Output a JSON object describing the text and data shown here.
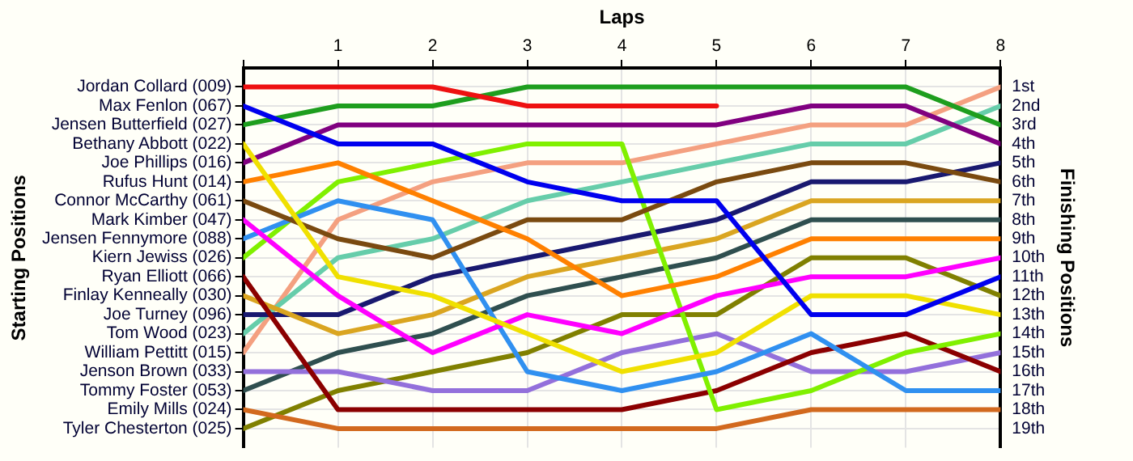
{
  "chart_data": {
    "type": "line",
    "xlabel": "Laps",
    "annotations": [
      "Starting Positions"
    ],
    "y2label": "Finishing Positions",
    "x": [
      0,
      1,
      2,
      3,
      4,
      5,
      6,
      7,
      8
    ],
    "xlim": [
      0,
      8
    ],
    "xticks": [
      {
        "value": 0,
        "label": null
      },
      1,
      2,
      3,
      4,
      5,
      6,
      7,
      8
    ],
    "y2lim": [
      20,
      0
    ],
    "y2ticks": [
      {
        "value": 1,
        "label": "1st"
      },
      {
        "value": 2,
        "label": "2nd"
      },
      {
        "value": 3,
        "label": "3rd"
      },
      {
        "value": 4,
        "label": "4th"
      },
      {
        "value": 5,
        "label": "5th"
      },
      {
        "value": 6,
        "label": "6th"
      },
      {
        "value": 7,
        "label": "7th"
      },
      {
        "value": 8,
        "label": "8th"
      },
      {
        "value": 9,
        "label": "9th"
      },
      {
        "value": 10,
        "label": "10th"
      },
      {
        "value": 11,
        "label": "11th"
      },
      {
        "value": 12,
        "label": "12th"
      },
      {
        "value": 13,
        "label": "13th"
      },
      {
        "value": 14,
        "label": "14th"
      },
      {
        "value": 15,
        "label": "15th"
      },
      {
        "value": 16,
        "label": "16th"
      },
      {
        "value": 17,
        "label": "17th"
      },
      {
        "value": 18,
        "label": "18th"
      },
      {
        "value": 19,
        "label": "19th"
      }
    ],
    "grid": true,
    "legend": false,
    "marker": "none",
    "line_style": "solid",
    "series": [
      {
        "name": "Jordan Collard (009)",
        "axis": "y2",
        "color": "#ee1111",
        "values": [
          1,
          1,
          1,
          2,
          2,
          2,
          null,
          null,
          null
        ]
      },
      {
        "name": "Max Fenlon (067)",
        "axis": "y2",
        "color": "#0000ee",
        "values": [
          2,
          4,
          4,
          6,
          7,
          7,
          13,
          13,
          11
        ]
      },
      {
        "name": "Jensen Butterfield (027)",
        "axis": "y2",
        "color": "#1e9e1e",
        "values": [
          3,
          2,
          2,
          1,
          1,
          1,
          1,
          1,
          3
        ]
      },
      {
        "name": "Bethany Abbott (022)",
        "axis": "y2",
        "color": "#f0e000",
        "values": [
          4,
          11,
          12,
          14,
          16,
          15,
          12,
          12,
          13
        ]
      },
      {
        "name": "Joe Phillips (016)",
        "axis": "y2",
        "color": "#800080",
        "values": [
          5,
          3,
          3,
          3,
          3,
          3,
          2,
          2,
          4
        ]
      },
      {
        "name": "Rufus Hunt (014)",
        "axis": "y2",
        "color": "#ff8000",
        "values": [
          6,
          5,
          7,
          9,
          12,
          11,
          9,
          9,
          9
        ]
      },
      {
        "name": "Connor McCarthy (061)",
        "axis": "y2",
        "color": "#7a4a10",
        "values": [
          7,
          9,
          10,
          8,
          8,
          6,
          5,
          5,
          6
        ]
      },
      {
        "name": "Mark Kimber (047)",
        "axis": "y2",
        "color": "#ff00ff",
        "values": [
          8,
          12,
          15,
          13,
          14,
          12,
          11,
          11,
          10
        ]
      },
      {
        "name": "Jensen Fennymore (088)",
        "axis": "y2",
        "color": "#3090f0",
        "values": [
          9,
          7,
          8,
          16,
          17,
          16,
          14,
          17,
          17
        ]
      },
      {
        "name": "Kiern Jewiss (026)",
        "axis": "y2",
        "color": "#80f000",
        "values": [
          10,
          6,
          5,
          4,
          4,
          18,
          17,
          15,
          14
        ]
      },
      {
        "name": "Ryan Elliott (066)",
        "axis": "y2",
        "color": "#8b0000",
        "values": [
          11,
          18,
          18,
          18,
          18,
          17,
          15,
          14,
          16
        ]
      },
      {
        "name": "Finlay Kenneally (030)",
        "axis": "y2",
        "color": "#daa520",
        "values": [
          12,
          14,
          13,
          11,
          10,
          9,
          7,
          7,
          7
        ]
      },
      {
        "name": "Joe Turney (096)",
        "axis": "y2",
        "color": "#191970",
        "values": [
          13,
          13,
          11,
          10,
          9,
          8,
          6,
          6,
          5
        ]
      },
      {
        "name": "Tom Wood (023)",
        "axis": "y2",
        "color": "#66cdaa",
        "values": [
          14,
          10,
          9,
          7,
          6,
          5,
          4,
          4,
          2
        ]
      },
      {
        "name": "William Pettitt (015)",
        "axis": "y2",
        "color": "#f4a080",
        "values": [
          15,
          8,
          6,
          5,
          5,
          4,
          3,
          3,
          1
        ]
      },
      {
        "name": "Jenson Brown (033)",
        "axis": "y2",
        "color": "#9370db",
        "values": [
          16,
          16,
          17,
          17,
          15,
          14,
          16,
          16,
          15
        ]
      },
      {
        "name": "Tommy Foster (053)",
        "axis": "y2",
        "color": "#2f4f4f",
        "values": [
          17,
          15,
          14,
          12,
          11,
          10,
          8,
          8,
          8
        ]
      },
      {
        "name": "Emily Mills (024)",
        "axis": "y2",
        "color": "#d2691e",
        "values": [
          18,
          19,
          19,
          19,
          19,
          19,
          18,
          18,
          18
        ]
      },
      {
        "name": "Tyler Chesterton (025)",
        "axis": "y2",
        "color": "#808000",
        "values": [
          19,
          17,
          16,
          15,
          13,
          13,
          10,
          10,
          12
        ]
      }
    ]
  }
}
